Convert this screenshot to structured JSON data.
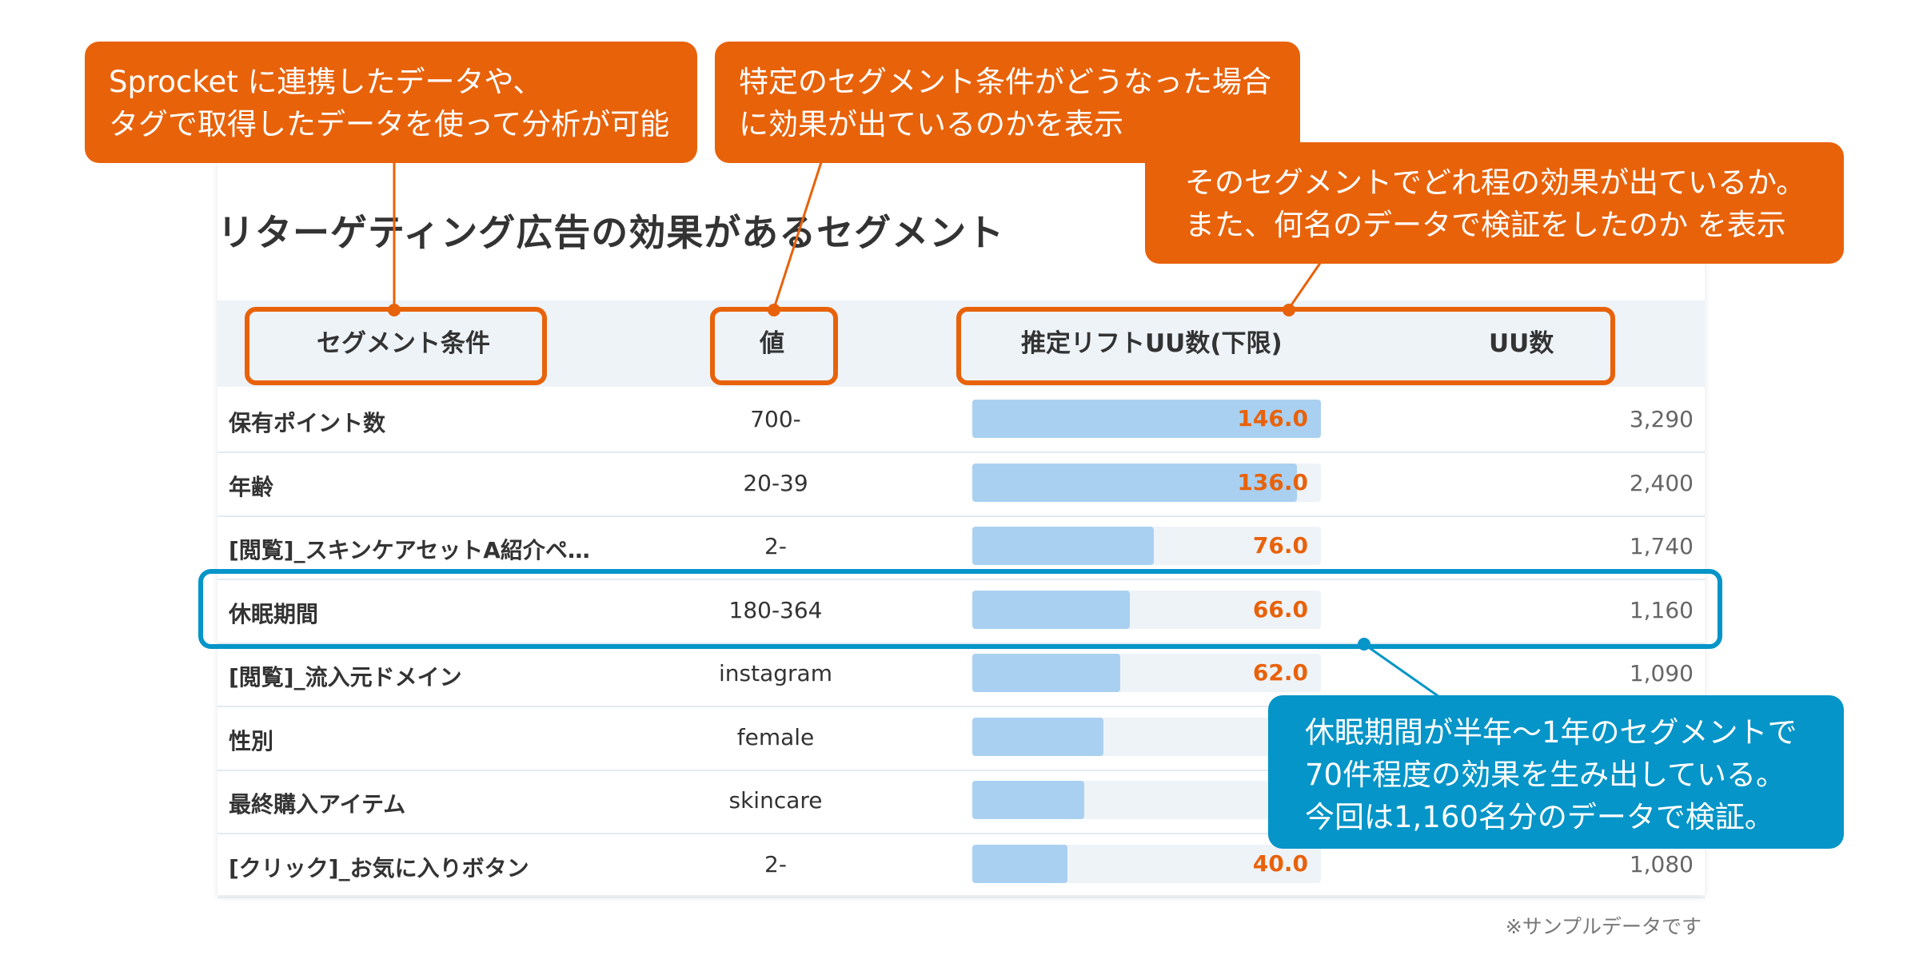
{
  "title": "リターゲティング広告の効果があるセグメント",
  "table": {
    "headers": {
      "segment": "セグメント条件",
      "value": "値",
      "lift": "推定リフトUU数(下限)",
      "uu": "UU数"
    },
    "rows": [
      {
        "segment": "保有ポイント数",
        "value": "700-",
        "lift": "146.0",
        "lift_value": 146.0,
        "uu": "3,290"
      },
      {
        "segment": "年齢",
        "value": "20-39",
        "lift": "136.0",
        "lift_value": 136.0,
        "uu": "2,400"
      },
      {
        "segment": "[閲覧]_スキンケアセットA紹介ペ…",
        "value": "2-",
        "lift": "76.0",
        "lift_value": 76.0,
        "uu": "1,740"
      },
      {
        "segment": "休眠期間",
        "value": "180-364",
        "lift": "66.0",
        "lift_value": 66.0,
        "uu": "1,160"
      },
      {
        "segment": "[閲覧]_流入元ドメイン",
        "value": "instagram",
        "lift": "62.0",
        "lift_value": 62.0,
        "uu": "1,090"
      },
      {
        "segment": "性別",
        "value": "female",
        "lift": "",
        "lift_value": 55.0,
        "uu": ""
      },
      {
        "segment": "最終購入アイテム",
        "value": "skincare",
        "lift": "",
        "lift_value": 47.0,
        "uu": ""
      },
      {
        "segment": "[クリック]_お気に入りボタン",
        "value": "2-",
        "lift": "40.0",
        "lift_value": 40.0,
        "uu": "1,080"
      }
    ],
    "lift_max": 146.0
  },
  "callouts": {
    "c1": [
      "Sprocket に連携したデータや、",
      "タグで取得したデータを使って分析が可能"
    ],
    "c2": [
      "特定のセグメント条件がどうなった場合",
      "に効果が出ているのかを表示"
    ],
    "c3": [
      "そのセグメントでどれ程の効果が出ているか。",
      "また、何名のデータで検証をしたのか を表示"
    ],
    "c4": [
      "休眠期間が半年〜1年のセグメントで",
      "70件程度の効果を生み出している。",
      "今回は1,160名分のデータで検証。"
    ]
  },
  "footnote": "※サンプルデータです",
  "colors": {
    "accent_orange": "#e8620a",
    "accent_blue": "#0595c8",
    "bar_fill": "#a9d0f1",
    "header_bg": "#eef3f8"
  }
}
